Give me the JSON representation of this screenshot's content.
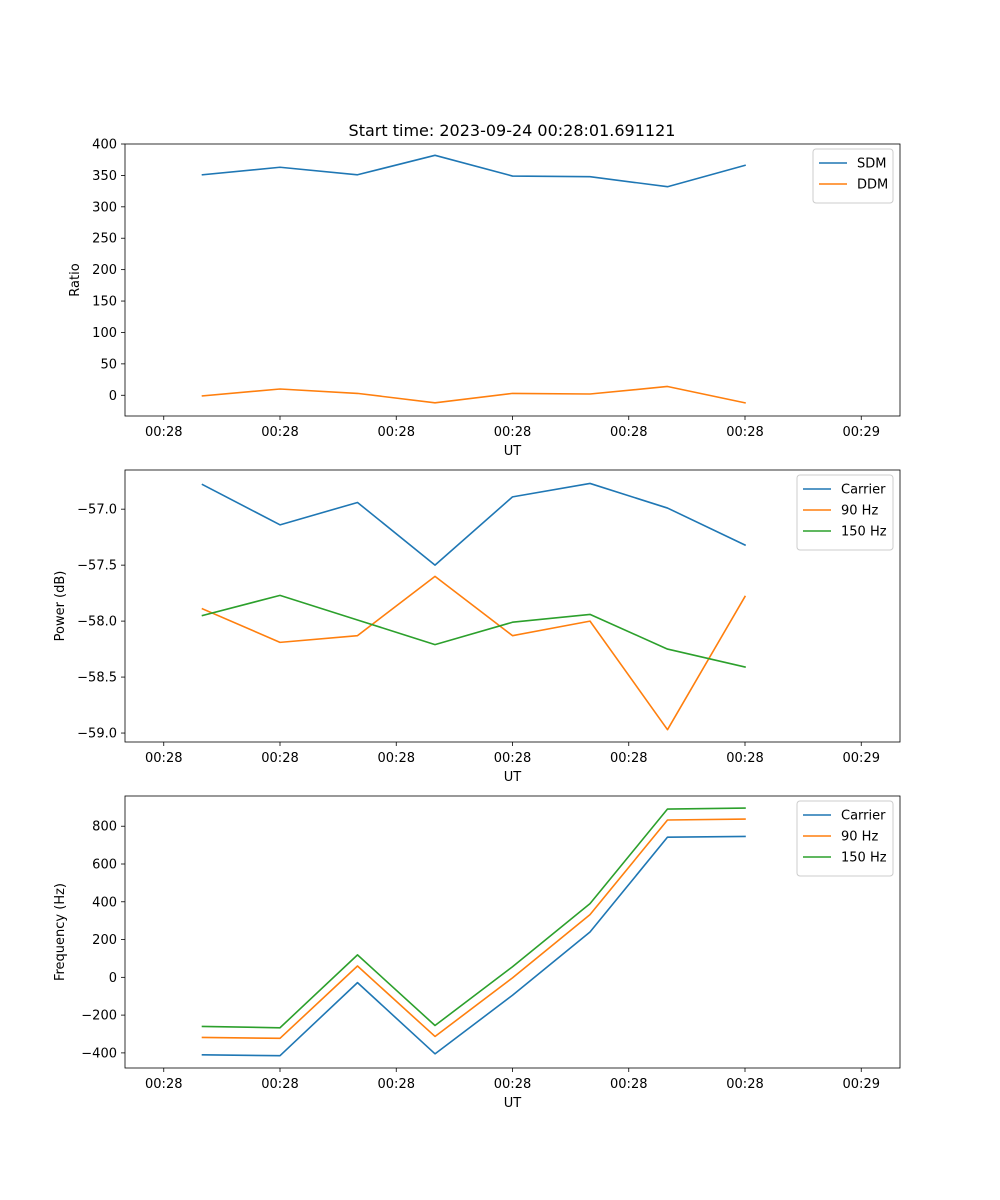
{
  "title": "Start time: 2023-09-24 00:28:01.691121",
  "chart_data": [
    {
      "type": "line",
      "xlabel": "UT",
      "ylabel": "Ratio",
      "x": [
        1,
        2,
        3,
        4,
        5,
        6,
        7,
        8
      ],
      "xlim": [
        0,
        10
      ],
      "x_ticks": [
        0.5,
        2,
        3.5,
        5,
        6.5,
        8,
        9.5
      ],
      "x_tick_labels": [
        "00:28",
        "00:28",
        "00:28",
        "00:28",
        "00:28",
        "00:28",
        "00:29"
      ],
      "ylim": [
        -33,
        400
      ],
      "y_ticks": [
        0,
        50,
        100,
        150,
        200,
        250,
        300,
        350,
        400
      ],
      "y_tick_labels": [
        "0",
        "50",
        "100",
        "150",
        "200",
        "250",
        "300",
        "350",
        "400"
      ],
      "legend_position": "top-right",
      "series": [
        {
          "name": "SDM",
          "color": "#1f77b4",
          "values": [
            351,
            363,
            351,
            382,
            349,
            348,
            332,
            366
          ]
        },
        {
          "name": "DDM",
          "color": "#ff7f0e",
          "values": [
            -1,
            10,
            3,
            -12,
            3,
            2,
            14,
            -12
          ]
        }
      ]
    },
    {
      "type": "line",
      "xlabel": "UT",
      "ylabel": "Power (dB)",
      "x": [
        1,
        2,
        3,
        4,
        5,
        6,
        7,
        8
      ],
      "xlim": [
        0,
        10
      ],
      "x_ticks": [
        0.5,
        2,
        3.5,
        5,
        6.5,
        8,
        9.5
      ],
      "x_tick_labels": [
        "00:28",
        "00:28",
        "00:28",
        "00:28",
        "00:28",
        "00:28",
        "00:29"
      ],
      "ylim": [
        -59.08,
        -56.65
      ],
      "y_ticks": [
        -57.0,
        -57.5,
        -58.0,
        -58.5,
        -59.0
      ],
      "y_tick_labels": [
        "−57.0",
        "−57.5",
        "−58.0",
        "−58.5",
        "−59.0"
      ],
      "legend_position": "top-right",
      "series": [
        {
          "name": "Carrier",
          "color": "#1f77b4",
          "values": [
            -56.78,
            -57.14,
            -56.94,
            -57.5,
            -56.89,
            -56.77,
            -56.99,
            -57.32
          ]
        },
        {
          "name": "90 Hz",
          "color": "#ff7f0e",
          "values": [
            -57.89,
            -58.19,
            -58.13,
            -57.6,
            -58.13,
            -58.0,
            -58.97,
            -57.78
          ]
        },
        {
          "name": "150 Hz",
          "color": "#2ca02c",
          "values": [
            -57.95,
            -57.77,
            -57.99,
            -58.21,
            -58.01,
            -57.94,
            -58.25,
            -58.41
          ]
        }
      ]
    },
    {
      "type": "line",
      "xlabel": "UT",
      "ylabel": "Frequency (Hz)",
      "x": [
        1,
        2,
        3,
        4,
        5,
        6,
        7,
        8
      ],
      "xlim": [
        0,
        10
      ],
      "x_ticks": [
        0.5,
        2,
        3.5,
        5,
        6.5,
        8,
        9.5
      ],
      "x_tick_labels": [
        "00:28",
        "00:28",
        "00:28",
        "00:28",
        "00:28",
        "00:28",
        "00:29"
      ],
      "ylim": [
        -480,
        960
      ],
      "y_ticks": [
        -400,
        -200,
        0,
        200,
        400,
        600,
        800
      ],
      "y_tick_labels": [
        "−400",
        "−200",
        "0",
        "200",
        "400",
        "600",
        "800"
      ],
      "legend_position": "top-right",
      "series": [
        {
          "name": "Carrier",
          "color": "#1f77b4",
          "values": [
            -410,
            -415,
            -28,
            -405,
            -95,
            240,
            742,
            746
          ]
        },
        {
          "name": "90 Hz",
          "color": "#ff7f0e",
          "values": [
            -318,
            -323,
            60,
            -313,
            -3,
            332,
            833,
            838
          ]
        },
        {
          "name": "150 Hz",
          "color": "#2ca02c",
          "values": [
            -260,
            -267,
            119,
            -255,
            56,
            390,
            891,
            896
          ]
        }
      ]
    }
  ]
}
